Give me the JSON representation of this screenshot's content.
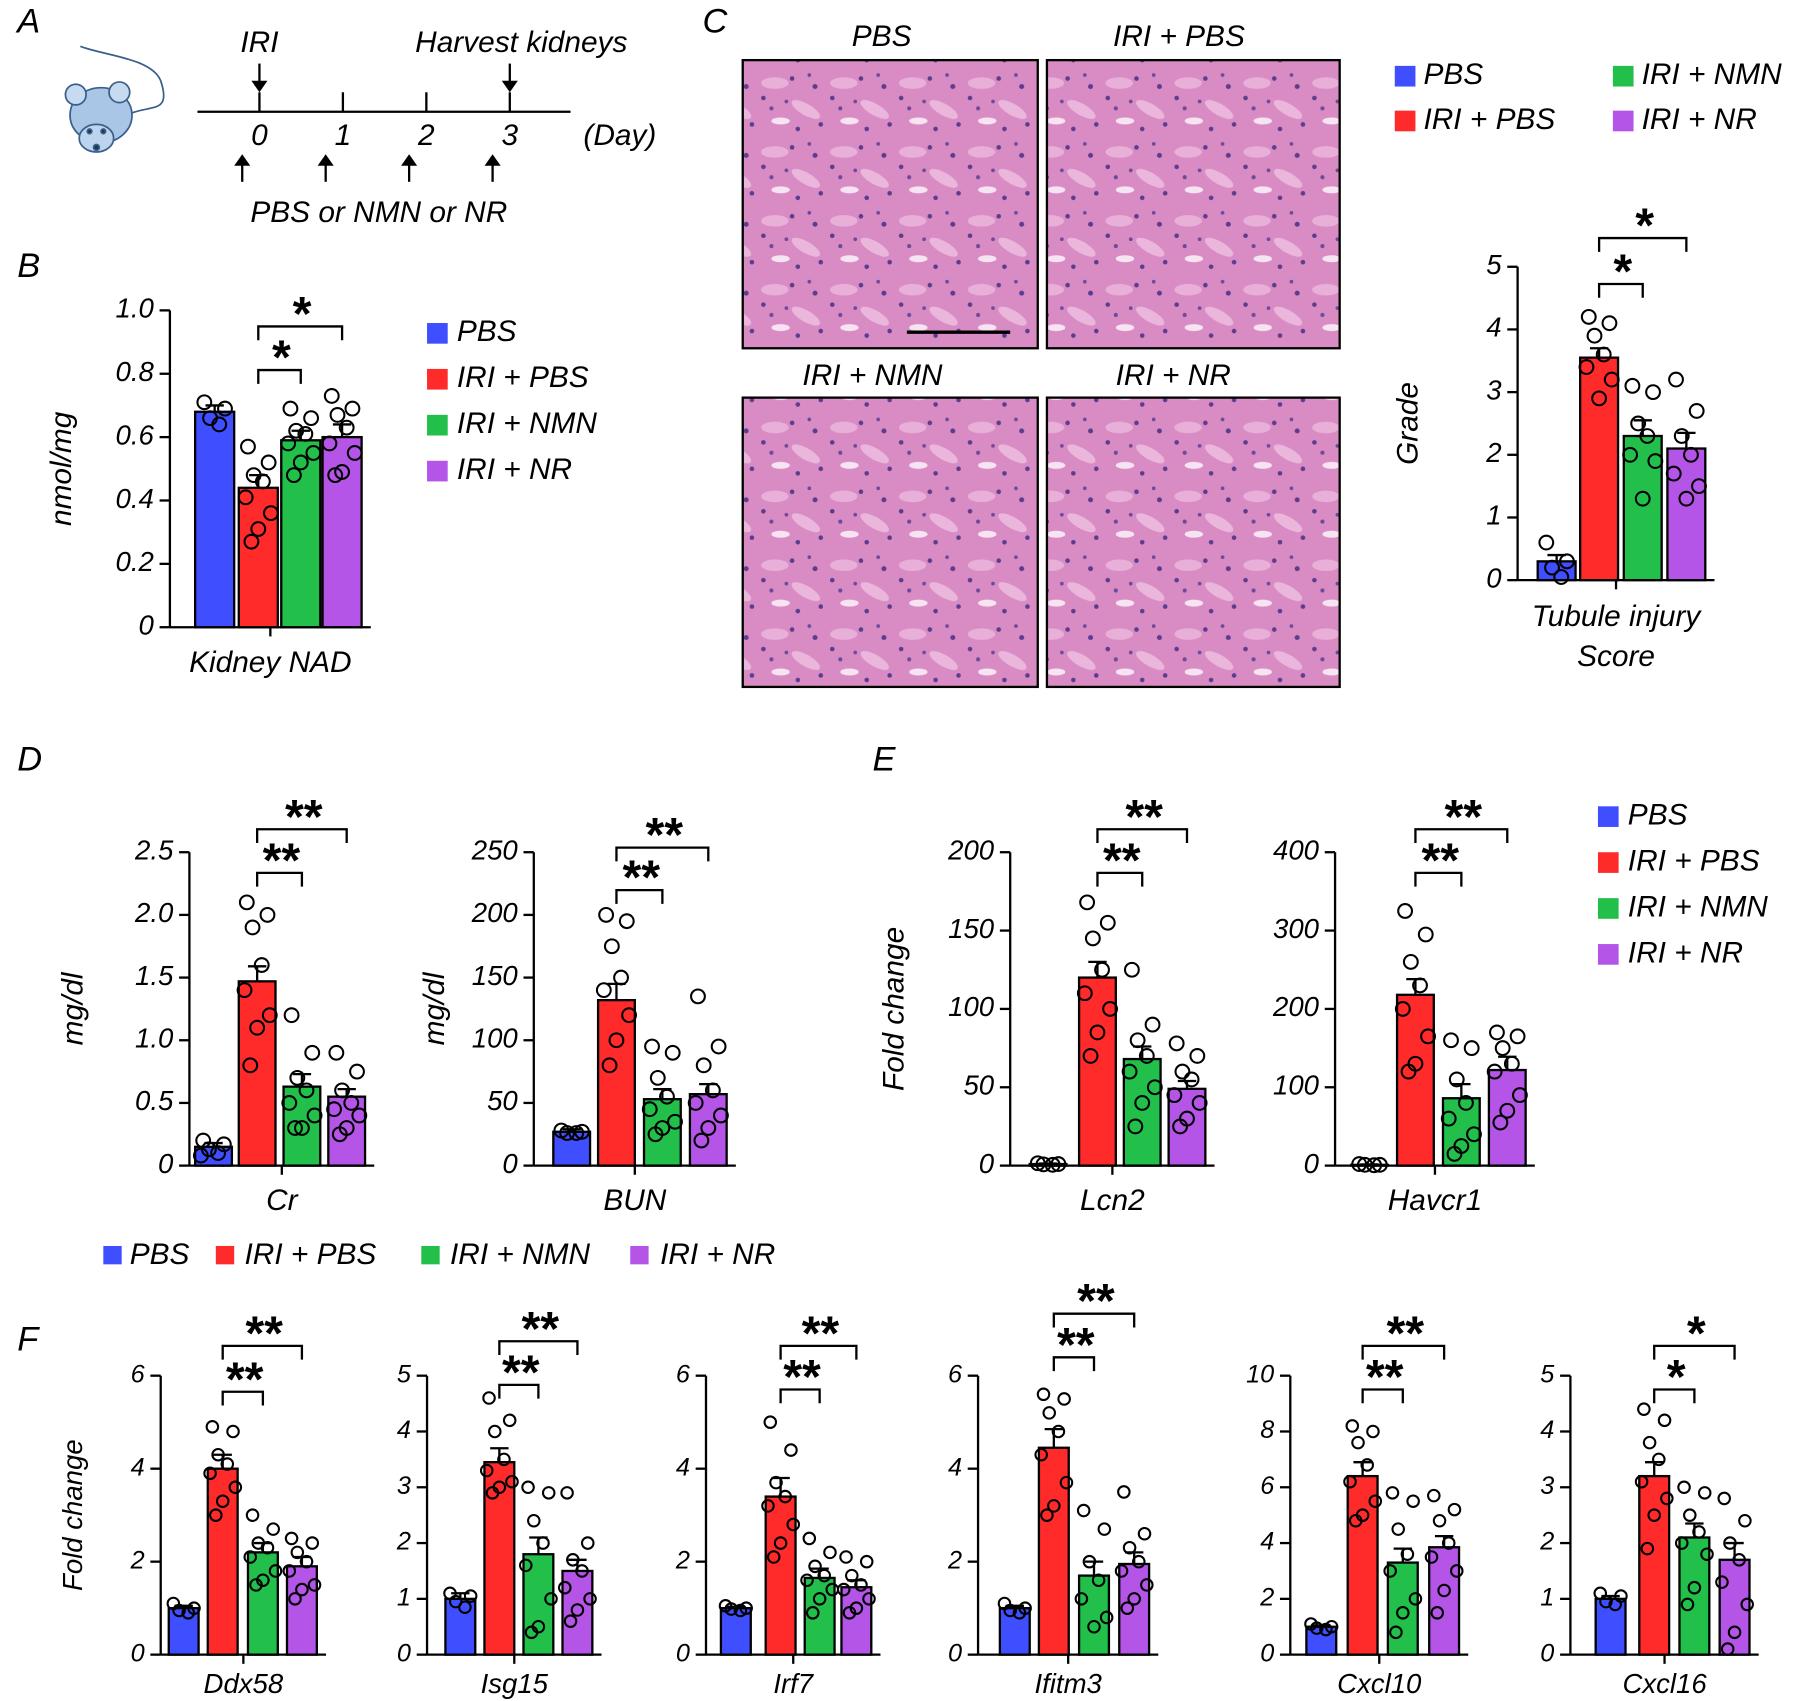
{
  "panels": [
    "A",
    "B",
    "C",
    "D",
    "E",
    "F"
  ],
  "groups": [
    {
      "name": "PBS",
      "color": "#3f4fff"
    },
    {
      "name": "IRI + PBS",
      "color": "#ff2a2a"
    },
    {
      "name": "IRI + NMN",
      "color": "#22c04a"
    },
    {
      "name": "IRI + NR",
      "color": "#b455e8"
    }
  ],
  "timeline": {
    "events": [
      "IRI",
      "Harvest kidneys"
    ],
    "days": [
      0,
      1,
      2,
      3
    ],
    "unit": "(Day)",
    "treatment": "PBS or NMN or NR"
  },
  "histology": [
    "PBS",
    "IRI + PBS",
    "IRI + NMN",
    "IRI + NR"
  ],
  "chart_data": [
    {
      "type": "bar",
      "xlabel": "Kidney NAD",
      "ylabel": "nmol/mg",
      "ylim": [
        0,
        1
      ],
      "yticks": [
        0,
        0.2,
        0.4,
        0.6,
        0.8,
        {
          "value": 1,
          "label": "1.0"
        }
      ],
      "values": [
        0.68,
        0.44,
        0.59,
        0.6
      ],
      "errors": [
        0.02,
        0.04,
        0.03,
        0.04
      ],
      "points": [
        [
          0.71,
          0.69,
          0.66,
          0.64
        ],
        [
          0.57,
          0.52,
          0.48,
          0.46,
          0.41,
          0.36,
          0.31,
          0.27
        ],
        [
          0.69,
          0.66,
          0.62,
          0.61,
          0.58,
          0.55,
          0.52,
          0.48
        ],
        [
          0.73,
          0.69,
          0.67,
          0.63,
          0.58,
          0.55,
          0.49,
          0.48
        ]
      ],
      "annotations": [
        "*",
        "*"
      ]
    },
    {
      "type": "bar",
      "xlabel": [
        "Tubule injury",
        "Score"
      ],
      "ylabel": "Grade",
      "ylim": [
        0,
        5
      ],
      "yticks": [
        0,
        1,
        2,
        3,
        4,
        5
      ],
      "values": [
        0.3,
        3.55,
        2.3,
        2.1
      ],
      "errors": [
        0.1,
        0.15,
        0.25,
        0.25
      ],
      "points": [
        [
          0.6,
          0.3,
          0.2,
          0.05
        ],
        [
          4.2,
          4.1,
          3.9,
          3.6,
          3.4,
          3.2,
          2.9
        ],
        [
          3.1,
          3.0,
          2.5,
          2.3,
          2.0,
          1.9,
          1.3
        ],
        [
          3.2,
          2.7,
          2.3,
          2.0,
          1.7,
          1.5,
          1.3
        ]
      ],
      "annotations": [
        "*",
        "*"
      ]
    },
    {
      "type": "bar",
      "xlabel": "Cr",
      "ylabel": "mg/dl",
      "ylim": [
        0,
        2.5
      ],
      "yticks": [
        0,
        0.5,
        {
          "value": 1,
          "label": "1.0"
        },
        1.5,
        {
          "value": 2,
          "label": "2.0"
        },
        2.5
      ],
      "values": [
        0.15,
        1.47,
        0.63,
        0.55
      ],
      "errors": [
        0.03,
        0.12,
        0.1,
        0.06
      ],
      "points": [
        [
          0.2,
          0.17,
          0.13,
          0.1,
          0.08
        ],
        [
          2.1,
          2.0,
          1.9,
          1.6,
          1.4,
          1.2,
          1.1,
          0.8
        ],
        [
          1.2,
          0.9,
          0.7,
          0.6,
          0.5,
          0.4,
          0.3,
          0.3
        ],
        [
          0.9,
          0.75,
          0.6,
          0.5,
          0.45,
          0.4,
          0.3,
          0.25
        ]
      ],
      "annotations": [
        "**",
        "**"
      ]
    },
    {
      "type": "bar",
      "xlabel": "BUN",
      "ylabel": "mg/dl",
      "ylim": [
        0,
        250
      ],
      "yticks": [
        0,
        50,
        100,
        150,
        200,
        250
      ],
      "values": [
        27,
        132,
        53,
        57
      ],
      "errors": [
        2,
        13,
        8,
        8
      ],
      "points": [
        [
          28,
          27,
          26,
          26
        ],
        [
          200,
          195,
          175,
          150,
          140,
          120,
          100,
          80
        ],
        [
          95,
          90,
          70,
          55,
          45,
          35,
          30,
          25
        ],
        [
          135,
          95,
          80,
          60,
          50,
          40,
          30,
          20
        ]
      ],
      "annotations": [
        "**",
        "**"
      ]
    },
    {
      "type": "bar",
      "xlabel": "Lcn2",
      "ylabel": "Fold change",
      "ylim": [
        0,
        200
      ],
      "yticks": [
        0,
        50,
        100,
        150,
        200
      ],
      "values": [
        1,
        120,
        68,
        49
      ],
      "errors": [
        0.3,
        10,
        8,
        5
      ],
      "points": [
        [
          1.5,
          1,
          0.8,
          0.5
        ],
        [
          168,
          155,
          145,
          125,
          110,
          100,
          85,
          70
        ],
        [
          125,
          90,
          80,
          70,
          60,
          50,
          40,
          25
        ],
        [
          78,
          70,
          60,
          55,
          45,
          40,
          30,
          25
        ]
      ],
      "annotations": [
        "**",
        "**"
      ]
    },
    {
      "type": "bar",
      "xlabel": "Havcr1",
      "ylim": [
        0,
        400
      ],
      "yticks": [
        0,
        100,
        200,
        300,
        400
      ],
      "values": [
        1,
        218,
        86,
        122
      ],
      "errors": [
        0.5,
        20,
        18,
        17
      ],
      "points": [
        [
          2,
          1,
          1,
          0.5
        ],
        [
          325,
          295,
          260,
          230,
          200,
          165,
          130,
          120
        ],
        [
          160,
          150,
          110,
          80,
          60,
          40,
          25,
          15
        ],
        [
          170,
          165,
          150,
          130,
          120,
          90,
          70,
          55
        ]
      ],
      "annotations": [
        "**",
        "**"
      ]
    },
    {
      "type": "bar",
      "xlabel": "Ddx58",
      "ylabel": "Fold change",
      "ylim": [
        0,
        6
      ],
      "yticks": [
        0,
        2,
        4,
        6
      ],
      "values": [
        1,
        4,
        2.2,
        1.9
      ],
      "errors": [
        0.05,
        0.3,
        0.2,
        0.2
      ],
      "points": [
        [
          1.1,
          1.0,
          0.95,
          0.9
        ],
        [
          4.9,
          4.8,
          4.3,
          4.1,
          3.9,
          3.6,
          3.3,
          3.0
        ],
        [
          3.0,
          2.7,
          2.4,
          2.3,
          2.1,
          1.8,
          1.6,
          1.5
        ],
        [
          2.5,
          2.4,
          2.2,
          2.0,
          1.8,
          1.5,
          1.4,
          1.2
        ]
      ],
      "annotations": [
        "**",
        "**"
      ]
    },
    {
      "type": "bar",
      "xlabel": "Isg15",
      "ylim": [
        0,
        5
      ],
      "yticks": [
        0,
        1,
        2,
        3,
        4,
        5
      ],
      "values": [
        1,
        3.45,
        1.8,
        1.5
      ],
      "errors": [
        0.1,
        0.25,
        0.3,
        0.2
      ],
      "points": [
        [
          1.1,
          1.05,
          0.95,
          0.85
        ],
        [
          4.6,
          4.2,
          4.0,
          3.5,
          3.3,
          3.1,
          3.0,
          2.9
        ],
        [
          3.0,
          2.9,
          2.4,
          2.0,
          1.6,
          1.0,
          0.5,
          0.4
        ],
        [
          2.9,
          2.0,
          1.7,
          1.5,
          1.2,
          1.0,
          0.8,
          0.6
        ]
      ],
      "annotations": [
        "**",
        "**"
      ]
    },
    {
      "type": "bar",
      "xlabel": "Irf7",
      "ylim": [
        0,
        6
      ],
      "yticks": [
        0,
        2,
        4,
        6
      ],
      "values": [
        1,
        3.4,
        1.65,
        1.45
      ],
      "errors": [
        0.03,
        0.4,
        0.2,
        0.15
      ],
      "points": [
        [
          1.05,
          1.0,
          0.98,
          0.95
        ],
        [
          5.0,
          4.4,
          3.7,
          3.4,
          3.2,
          2.8,
          2.4,
          2.1
        ],
        [
          2.5,
          2.2,
          1.9,
          1.7,
          1.6,
          1.4,
          1.2,
          0.9
        ],
        [
          2.1,
          2.0,
          1.7,
          1.5,
          1.4,
          1.2,
          1.0,
          0.9
        ]
      ],
      "annotations": [
        "**",
        "**"
      ]
    },
    {
      "type": "bar",
      "xlabel": "Ifitm3",
      "ylim": [
        0,
        6
      ],
      "yticks": [
        0,
        2,
        4,
        6
      ],
      "values": [
        1,
        4.45,
        1.7,
        1.95
      ],
      "errors": [
        0.05,
        0.4,
        0.3,
        0.25
      ],
      "points": [
        [
          1.1,
          1.0,
          0.95,
          0.9
        ],
        [
          5.6,
          5.5,
          5.2,
          4.8,
          4.3,
          3.7,
          3.2,
          3.0
        ],
        [
          3.1,
          2.7,
          2.0,
          1.6,
          1.2,
          0.8,
          0.6
        ],
        [
          3.5,
          2.6,
          2.3,
          2.0,
          1.8,
          1.5,
          1.2,
          1.0
        ]
      ],
      "annotations": [
        "**",
        "**"
      ]
    },
    {
      "type": "bar",
      "xlabel": "Cxcl10",
      "ylim": [
        0,
        10
      ],
      "yticks": [
        0,
        2,
        4,
        6,
        8,
        10
      ],
      "values": [
        1,
        6.4,
        3.3,
        3.85
      ],
      "errors": [
        0.05,
        0.5,
        0.5,
        0.4
      ],
      "points": [
        [
          1.1,
          1.0,
          0.95,
          0.9
        ],
        [
          8.2,
          8.0,
          7.6,
          6.8,
          6.2,
          5.5,
          5.0,
          4.8
        ],
        [
          5.8,
          5.5,
          4.5,
          3.6,
          3.0,
          2.0,
          1.5,
          0.8
        ],
        [
          5.7,
          5.2,
          4.8,
          4.0,
          3.5,
          3.0,
          2.3,
          1.5
        ]
      ],
      "annotations": [
        "**",
        "**"
      ]
    },
    {
      "type": "bar",
      "xlabel": "Cxcl16",
      "ylim": [
        0,
        5
      ],
      "yticks": [
        0,
        1,
        2,
        3,
        4,
        5
      ],
      "values": [
        1,
        3.2,
        2.1,
        1.7
      ],
      "errors": [
        0.05,
        0.25,
        0.25,
        0.3
      ],
      "points": [
        [
          1.1,
          1.05,
          0.95,
          0.9
        ],
        [
          4.4,
          4.2,
          3.8,
          3.5,
          3.1,
          2.8,
          2.5,
          1.9
        ],
        [
          3.0,
          2.9,
          2.5,
          2.2,
          2.0,
          1.8,
          1.2,
          0.9
        ],
        [
          2.8,
          2.4,
          2.0,
          1.7,
          1.3,
          0.9,
          0.4,
          0.1
        ]
      ],
      "annotations": [
        "*",
        "*"
      ]
    }
  ]
}
